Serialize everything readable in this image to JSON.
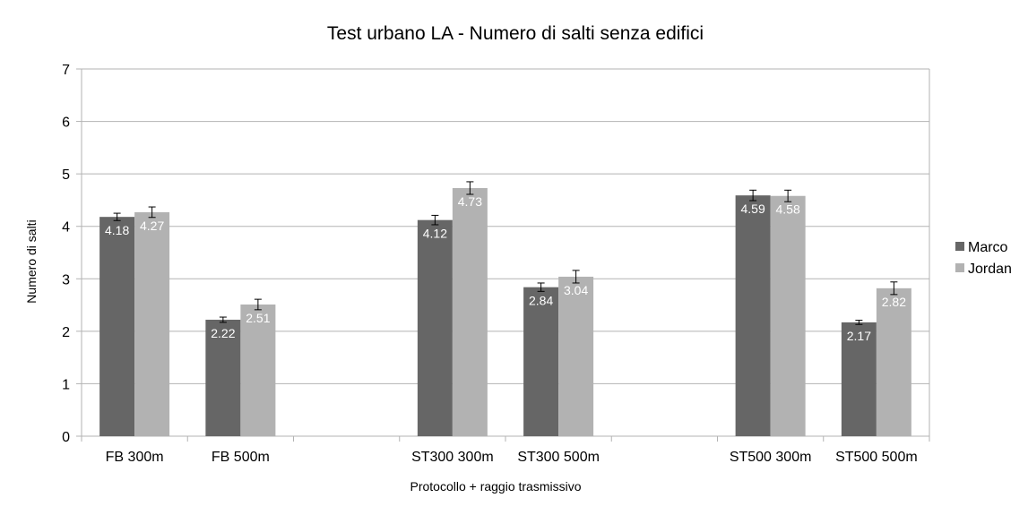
{
  "chart_data": {
    "type": "bar",
    "title": "Test urbano LA - Numero di salti senza edifici",
    "xlabel": "Protocollo + raggio trasmissivo",
    "ylabel": "Numero di salti",
    "ylim": [
      0,
      7
    ],
    "yticks": [
      "0",
      "1",
      "2",
      "3",
      "4",
      "5",
      "6",
      "7"
    ],
    "grid": true,
    "legend_position": "right",
    "categories": [
      "FB 300m",
      "FB 500m",
      "",
      "ST300 300m",
      "ST300 500m",
      "",
      "ST500 300m",
      "ST500 500m"
    ],
    "series": [
      {
        "name": "Marco",
        "color": "#666666",
        "values": [
          4.18,
          2.22,
          null,
          4.12,
          2.84,
          null,
          4.59,
          2.17
        ],
        "labels": [
          "4.18",
          "2.22",
          "",
          "4.12",
          "2.84",
          "",
          "4.59",
          "2.17"
        ],
        "errors": [
          0.07,
          0.05,
          null,
          0.09,
          0.08,
          null,
          0.1,
          0.04
        ]
      },
      {
        "name": "Jordan",
        "color": "#b2b2b2",
        "values": [
          4.27,
          2.51,
          null,
          4.73,
          3.04,
          null,
          4.58,
          2.82
        ],
        "labels": [
          "4.27",
          "2.51",
          "",
          "4.73",
          "3.04",
          "",
          "4.58",
          "2.82"
        ],
        "errors": [
          0.1,
          0.1,
          null,
          0.12,
          0.12,
          null,
          0.11,
          0.12
        ]
      }
    ]
  }
}
